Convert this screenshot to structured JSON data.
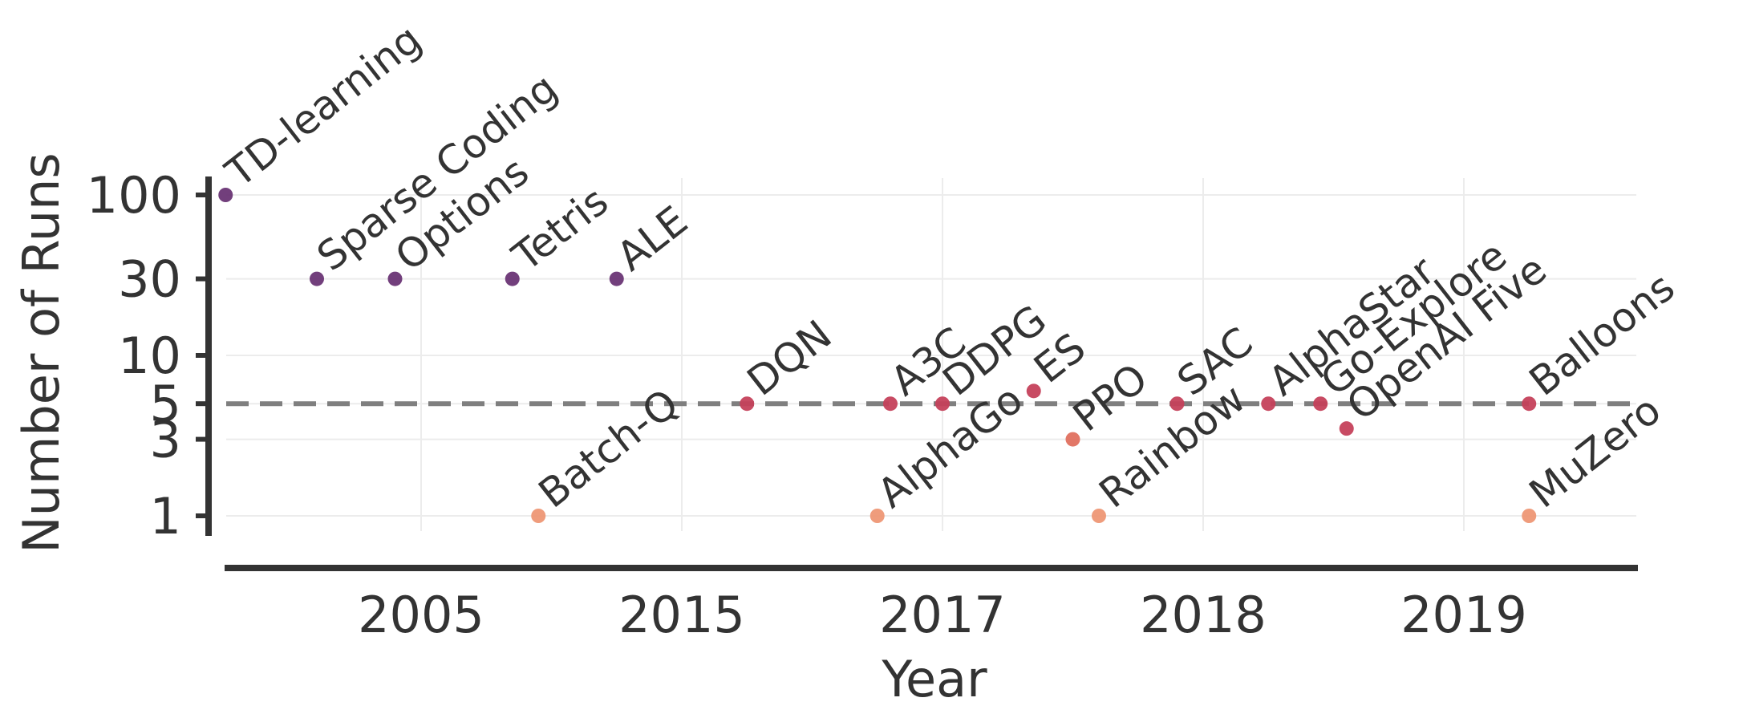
{
  "chart_data": {
    "type": "scatter",
    "xlabel": "Year",
    "ylabel": "Number of Runs",
    "y_scale": "log",
    "ylim": [
      0.8,
      130
    ],
    "x_axis_kind": "categorical-years",
    "x_ticks": [
      "2005",
      "2015",
      "2017",
      "2018",
      "2019"
    ],
    "y_ticks": [
      1,
      3,
      5,
      10,
      30,
      100
    ],
    "y_tick_labels": [
      "1",
      "3",
      "5",
      "10",
      "30",
      "100"
    ],
    "reference_line": {
      "y": 5,
      "style": "dashed"
    },
    "grid": true,
    "legend": "none",
    "colors": {
      "high": "#6a3575",
      "mid": "#c5415b",
      "low": "#ee9775",
      "line": "#7f7f7f",
      "axis": "#333333",
      "text": "#333333"
    },
    "points": [
      {
        "label": "TD-learning",
        "x": 0.25,
        "y": 100
      },
      {
        "label": "Sparse Coding",
        "x": 0.6,
        "y": 30
      },
      {
        "label": "Options",
        "x": 0.9,
        "y": 30
      },
      {
        "label": "Tetris",
        "x": 1.35,
        "y": 30
      },
      {
        "label": "ALE",
        "x": 1.75,
        "y": 30
      },
      {
        "label": "Batch-Q",
        "x": 1.45,
        "y": 1
      },
      {
        "label": "DQN",
        "x": 2.25,
        "y": 5
      },
      {
        "label": "AlphaGo",
        "x": 2.75,
        "y": 1
      },
      {
        "label": "A3C",
        "x": 2.8,
        "y": 5
      },
      {
        "label": "DDPG",
        "x": 3.0,
        "y": 5
      },
      {
        "label": "ES",
        "x": 3.35,
        "y": 6
      },
      {
        "label": "PPO",
        "x": 3.5,
        "y": 3
      },
      {
        "label": "Rainbow",
        "x": 3.6,
        "y": 1
      },
      {
        "label": "SAC",
        "x": 3.9,
        "y": 5
      },
      {
        "label": "AlphaStar",
        "x": 4.25,
        "y": 5
      },
      {
        "label": "Go-Explore",
        "x": 4.45,
        "y": 5
      },
      {
        "label": "OpenAI Five",
        "x": 4.55,
        "y": 3.5
      },
      {
        "label": "Balloons",
        "x": 5.25,
        "y": 5
      },
      {
        "label": "MuZero",
        "x": 5.25,
        "y": 1
      }
    ]
  }
}
